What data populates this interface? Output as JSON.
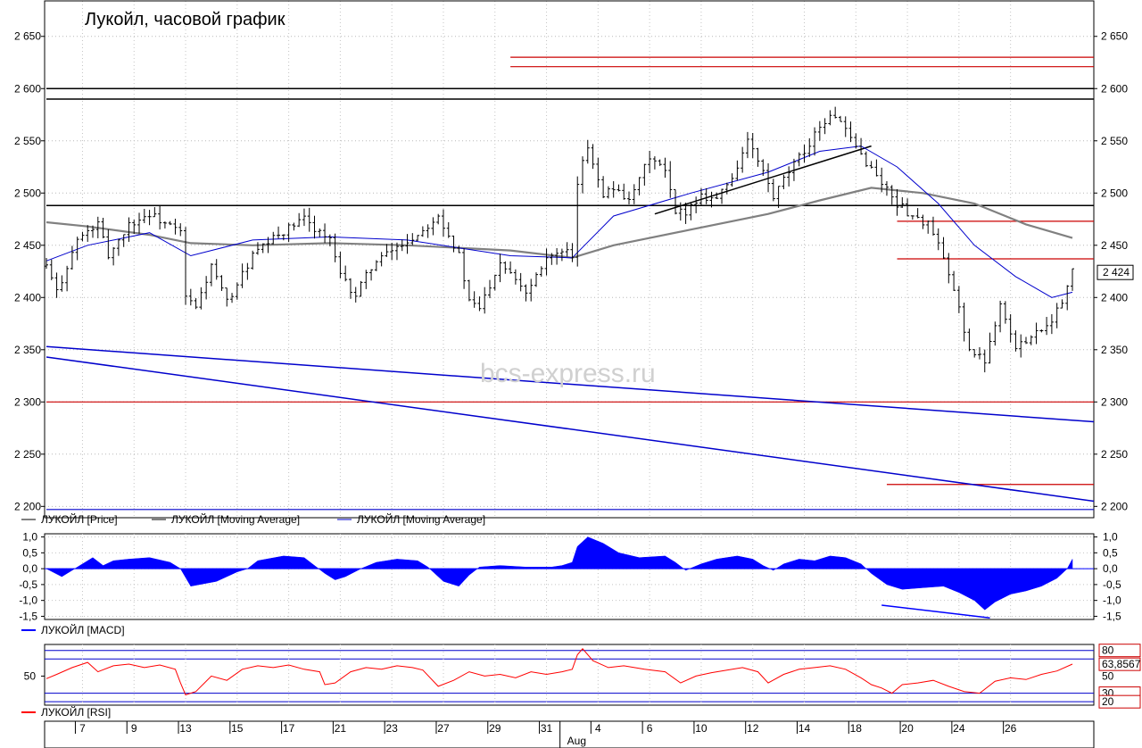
{
  "chart_data": [
    {
      "type": "candlestick",
      "title": "Лукойл, часовой график",
      "watermark": "bcs-express.ru",
      "ylim": [
        2196,
        2672
      ],
      "yticks": [
        2200,
        2250,
        2300,
        2350,
        2400,
        2450,
        2500,
        2550,
        2600,
        2650
      ],
      "ytick_labels": [
        "2 200",
        "2 250",
        "2 300",
        "2 350",
        "2 400",
        "2 450",
        "2 500",
        "2 550",
        "2 600",
        "2 650"
      ],
      "last_price": 2424,
      "last_price_label": "2 424",
      "price_path": [
        [
          0,
          2430
        ],
        [
          2,
          2405
        ],
        [
          6,
          2455
        ],
        [
          10,
          2470
        ],
        [
          12,
          2440
        ],
        [
          16,
          2470
        ],
        [
          20,
          2480
        ],
        [
          26,
          2462
        ],
        [
          27,
          2400
        ],
        [
          29,
          2390
        ],
        [
          32,
          2430
        ],
        [
          35,
          2395
        ],
        [
          40,
          2440
        ],
        [
          45,
          2460
        ],
        [
          50,
          2475
        ],
        [
          55,
          2455
        ],
        [
          57,
          2420
        ],
        [
          60,
          2402
        ],
        [
          63,
          2430
        ],
        [
          67,
          2445
        ],
        [
          72,
          2460
        ],
        [
          76,
          2480
        ],
        [
          80,
          2440
        ],
        [
          82,
          2395
        ],
        [
          84,
          2390
        ],
        [
          88,
          2435
        ],
        [
          91,
          2420
        ],
        [
          93,
          2405
        ],
        [
          97,
          2440
        ],
        [
          101,
          2442
        ],
        [
          102,
          2435
        ],
        [
          103,
          2510
        ],
        [
          105,
          2545
        ],
        [
          108,
          2500
        ],
        [
          111,
          2505
        ],
        [
          113,
          2490
        ],
        [
          117,
          2535
        ],
        [
          120,
          2520
        ],
        [
          122,
          2480
        ],
        [
          124,
          2483
        ],
        [
          127,
          2498
        ],
        [
          130,
          2495
        ],
        [
          133,
          2515
        ],
        [
          136,
          2550
        ],
        [
          139,
          2520
        ],
        [
          141,
          2495
        ],
        [
          144,
          2520
        ],
        [
          147,
          2540
        ],
        [
          150,
          2565
        ],
        [
          153,
          2575
        ],
        [
          156,
          2550
        ],
        [
          159,
          2530
        ],
        [
          162,
          2510
        ],
        [
          165,
          2490
        ],
        [
          168,
          2478
        ],
        [
          171,
          2470
        ],
        [
          173,
          2450
        ],
        [
          175,
          2420
        ],
        [
          177,
          2390
        ],
        [
          179,
          2350
        ],
        [
          180,
          2345
        ],
        [
          182,
          2340
        ],
        [
          185,
          2395
        ],
        [
          188,
          2350
        ],
        [
          191,
          2365
        ],
        [
          193,
          2370
        ],
        [
          195,
          2380
        ],
        [
          197,
          2395
        ],
        [
          199,
          2424
        ]
      ],
      "series": [
        {
          "name": "ЛУКОЙЛ [Price]",
          "color": "#000000"
        },
        {
          "name": "ЛУКОЙЛ [Moving Average]",
          "color": "#808080",
          "points": [
            [
              0,
              2472
            ],
            [
              8,
              2468
            ],
            [
              20,
              2460
            ],
            [
              28,
              2452
            ],
            [
              40,
              2450
            ],
            [
              55,
              2452
            ],
            [
              70,
              2450
            ],
            [
              90,
              2445
            ],
            [
              102,
              2438
            ],
            [
              110,
              2450
            ],
            [
              125,
              2465
            ],
            [
              140,
              2480
            ],
            [
              150,
              2493
            ],
            [
              160,
              2505
            ],
            [
              170,
              2500
            ],
            [
              180,
              2490
            ],
            [
              190,
              2470
            ],
            [
              199,
              2457
            ]
          ]
        },
        {
          "name": "ЛУКОЙЛ [Moving Average]",
          "color": "#0000cc",
          "points": [
            [
              0,
              2435
            ],
            [
              8,
              2450
            ],
            [
              20,
              2462
            ],
            [
              28,
              2440
            ],
            [
              40,
              2455
            ],
            [
              55,
              2458
            ],
            [
              70,
              2455
            ],
            [
              90,
              2440
            ],
            [
              102,
              2438
            ],
            [
              110,
              2478
            ],
            [
              125,
              2500
            ],
            [
              140,
              2520
            ],
            [
              150,
              2540
            ],
            [
              158,
              2545
            ],
            [
              165,
              2525
            ],
            [
              173,
              2490
            ],
            [
              180,
              2450
            ],
            [
              188,
              2420
            ],
            [
              195,
              2400
            ],
            [
              199,
              2405
            ]
          ]
        }
      ],
      "h_lines": [
        {
          "y": 2600,
          "x": [
            0,
            199
          ],
          "color": "#000000"
        },
        {
          "y": 2590,
          "x": [
            0,
            199
          ],
          "color": "#000000"
        },
        {
          "y": 2488,
          "x": [
            0,
            199
          ],
          "color": "#000000"
        },
        {
          "y": 2300,
          "x": [
            0,
            199
          ],
          "color": "#cc0000"
        },
        {
          "y": 2630,
          "x": [
            90,
            199
          ],
          "color": "#cc0000"
        },
        {
          "y": 2621,
          "x": [
            90,
            199
          ],
          "color": "#cc0000"
        },
        {
          "y": 2473,
          "x": [
            165,
            199
          ],
          "color": "#cc0000"
        },
        {
          "y": 2437,
          "x": [
            165,
            199
          ],
          "color": "#cc0000"
        },
        {
          "y": 2221,
          "x": [
            163,
            199
          ],
          "color": "#cc0000"
        },
        {
          "y": 2197,
          "x": [
            0,
            199
          ],
          "color": "#0000cc"
        }
      ],
      "trend_lines": [
        {
          "from": [
            0,
            2353
          ],
          "to": [
            199,
            2281
          ],
          "color": "#0000cc"
        },
        {
          "from": [
            0,
            2343
          ],
          "to": [
            199,
            2205
          ],
          "color": "#0000cc"
        },
        {
          "from": [
            118,
            2480
          ],
          "to": [
            160,
            2545
          ],
          "color": "#000000"
        }
      ]
    },
    {
      "type": "area",
      "name": "ЛУКОЙЛ [MACD]",
      "color": "#0000ff",
      "ylim": [
        -1.6,
        1.1
      ],
      "yticks": [
        1.0,
        0.5,
        0.0,
        -0.5,
        -1.0,
        -1.5
      ],
      "ytick_labels": [
        "1,0",
        "0,5",
        "0,0",
        "-0,5",
        "-1,0",
        "-1,5"
      ],
      "ytick_labels_right": [
        "1,0",
        "0,5",
        "0,0",
        "-0,5",
        "-1,0",
        "-1,5"
      ],
      "points": [
        [
          0,
          0
        ],
        [
          3,
          -0.25
        ],
        [
          5,
          -0.05
        ],
        [
          9,
          0.35
        ],
        [
          11,
          0.1
        ],
        [
          13,
          0.25
        ],
        [
          16,
          0.3
        ],
        [
          20,
          0.35
        ],
        [
          24,
          0.2
        ],
        [
          26,
          0
        ],
        [
          28,
          -0.55
        ],
        [
          33,
          -0.4
        ],
        [
          37,
          -0.1
        ],
        [
          39,
          0
        ],
        [
          41,
          0.25
        ],
        [
          46,
          0.4
        ],
        [
          50,
          0.35
        ],
        [
          52,
          0.1
        ],
        [
          54,
          -0.15
        ],
        [
          56,
          -0.35
        ],
        [
          58,
          -0.25
        ],
        [
          61,
          0
        ],
        [
          64,
          0.2
        ],
        [
          68,
          0.3
        ],
        [
          72,
          0.25
        ],
        [
          74,
          0.05
        ],
        [
          77,
          -0.4
        ],
        [
          80,
          -0.55
        ],
        [
          82,
          -0.2
        ],
        [
          84,
          0.05
        ],
        [
          88,
          0.1
        ],
        [
          93,
          0.05
        ],
        [
          98,
          0.05
        ],
        [
          100,
          0.1
        ],
        [
          102,
          0.2
        ],
        [
          103,
          0.7
        ],
        [
          105,
          1.0
        ],
        [
          108,
          0.8
        ],
        [
          111,
          0.5
        ],
        [
          115,
          0.35
        ],
        [
          120,
          0.4
        ],
        [
          122,
          0.2
        ],
        [
          124,
          -0.05
        ],
        [
          127,
          0.15
        ],
        [
          130,
          0.3
        ],
        [
          134,
          0.4
        ],
        [
          137,
          0.3
        ],
        [
          139,
          0.1
        ],
        [
          141,
          -0.05
        ],
        [
          143,
          0.15
        ],
        [
          146,
          0.3
        ],
        [
          149,
          0.25
        ],
        [
          152,
          0.4
        ],
        [
          155,
          0.35
        ],
        [
          158,
          0.15
        ],
        [
          160,
          -0.15
        ],
        [
          163,
          -0.5
        ],
        [
          166,
          -0.65
        ],
        [
          170,
          -0.6
        ],
        [
          174,
          -0.55
        ],
        [
          177,
          -0.75
        ],
        [
          180,
          -1.0
        ],
        [
          182,
          -1.3
        ],
        [
          184,
          -1.05
        ],
        [
          187,
          -0.8
        ],
        [
          190,
          -0.7
        ],
        [
          193,
          -0.55
        ],
        [
          196,
          -0.3
        ],
        [
          198,
          0
        ],
        [
          199,
          0.3
        ]
      ],
      "trend_line": {
        "from": [
          162,
          -1.15
        ],
        "to": [
          183,
          -1.55
        ],
        "color": "#0000ff"
      }
    },
    {
      "type": "line",
      "name": "ЛУКОЙЛ [RSI]",
      "color": "#ff0000",
      "ylim": [
        16,
        87
      ],
      "yticks": [
        50
      ],
      "ytick_labels": [
        "50"
      ],
      "right_labels": [
        {
          "y": 80,
          "label": "80",
          "boxed": true
        },
        {
          "y": 63.8567,
          "label": "63,8567",
          "boxed": true
        },
        {
          "y": 50,
          "label": "50",
          "boxed": false
        },
        {
          "y": 30,
          "label": "30",
          "boxed": true
        },
        {
          "y": 20,
          "label": "20",
          "boxed": true
        }
      ],
      "h_lines": [
        80,
        70,
        30,
        20
      ],
      "last_value": 63.8567,
      "points": [
        [
          0,
          47
        ],
        [
          2,
          52
        ],
        [
          5,
          60
        ],
        [
          8,
          66
        ],
        [
          10,
          55
        ],
        [
          13,
          62
        ],
        [
          16,
          64
        ],
        [
          19,
          60
        ],
        [
          22,
          63
        ],
        [
          25,
          58
        ],
        [
          26,
          42
        ],
        [
          27,
          28
        ],
        [
          29,
          32
        ],
        [
          32,
          50
        ],
        [
          35,
          45
        ],
        [
          38,
          58
        ],
        [
          41,
          62
        ],
        [
          44,
          60
        ],
        [
          47,
          63
        ],
        [
          50,
          58
        ],
        [
          53,
          55
        ],
        [
          54,
          40
        ],
        [
          56,
          42
        ],
        [
          59,
          55
        ],
        [
          62,
          60
        ],
        [
          65,
          58
        ],
        [
          68,
          62
        ],
        [
          71,
          60
        ],
        [
          73,
          57
        ],
        [
          76,
          38
        ],
        [
          79,
          45
        ],
        [
          82,
          55
        ],
        [
          85,
          50
        ],
        [
          88,
          52
        ],
        [
          91,
          48
        ],
        [
          94,
          55
        ],
        [
          97,
          52
        ],
        [
          100,
          55
        ],
        [
          102,
          58
        ],
        [
          103,
          75
        ],
        [
          104,
          82
        ],
        [
          106,
          68
        ],
        [
          109,
          60
        ],
        [
          112,
          62
        ],
        [
          116,
          58
        ],
        [
          120,
          55
        ],
        [
          123,
          42
        ],
        [
          126,
          50
        ],
        [
          129,
          54
        ],
        [
          132,
          57
        ],
        [
          135,
          60
        ],
        [
          138,
          55
        ],
        [
          140,
          42
        ],
        [
          143,
          52
        ],
        [
          146,
          58
        ],
        [
          149,
          60
        ],
        [
          152,
          62
        ],
        [
          155,
          58
        ],
        [
          158,
          48
        ],
        [
          160,
          40
        ],
        [
          162,
          36
        ],
        [
          164,
          30
        ],
        [
          166,
          40
        ],
        [
          169,
          42
        ],
        [
          172,
          45
        ],
        [
          175,
          38
        ],
        [
          178,
          32
        ],
        [
          181,
          30
        ],
        [
          184,
          44
        ],
        [
          187,
          48
        ],
        [
          190,
          46
        ],
        [
          193,
          52
        ],
        [
          196,
          56
        ],
        [
          199,
          64
        ]
      ]
    },
    {
      "type": "axis",
      "x_labels": [
        {
          "x": 7,
          "label": "7"
        },
        {
          "x": 17,
          "label": "9"
        },
        {
          "x": 27,
          "label": "13"
        },
        {
          "x": 37,
          "label": "15"
        },
        {
          "x": 47,
          "label": "17"
        },
        {
          "x": 57,
          "label": "21"
        },
        {
          "x": 67,
          "label": "23"
        },
        {
          "x": 77,
          "label": "27"
        },
        {
          "x": 87,
          "label": "29"
        },
        {
          "x": 97,
          "label": "31"
        },
        {
          "x": 107,
          "label": "4"
        },
        {
          "x": 117,
          "label": "6"
        },
        {
          "x": 127,
          "label": "10"
        },
        {
          "x": 137,
          "label": "12"
        },
        {
          "x": 147,
          "label": "14"
        },
        {
          "x": 157,
          "label": "18"
        },
        {
          "x": 167,
          "label": "20"
        },
        {
          "x": 177,
          "label": "24"
        },
        {
          "x": 187,
          "label": "26"
        }
      ],
      "month_label": "Aug",
      "month_x": 101
    }
  ]
}
